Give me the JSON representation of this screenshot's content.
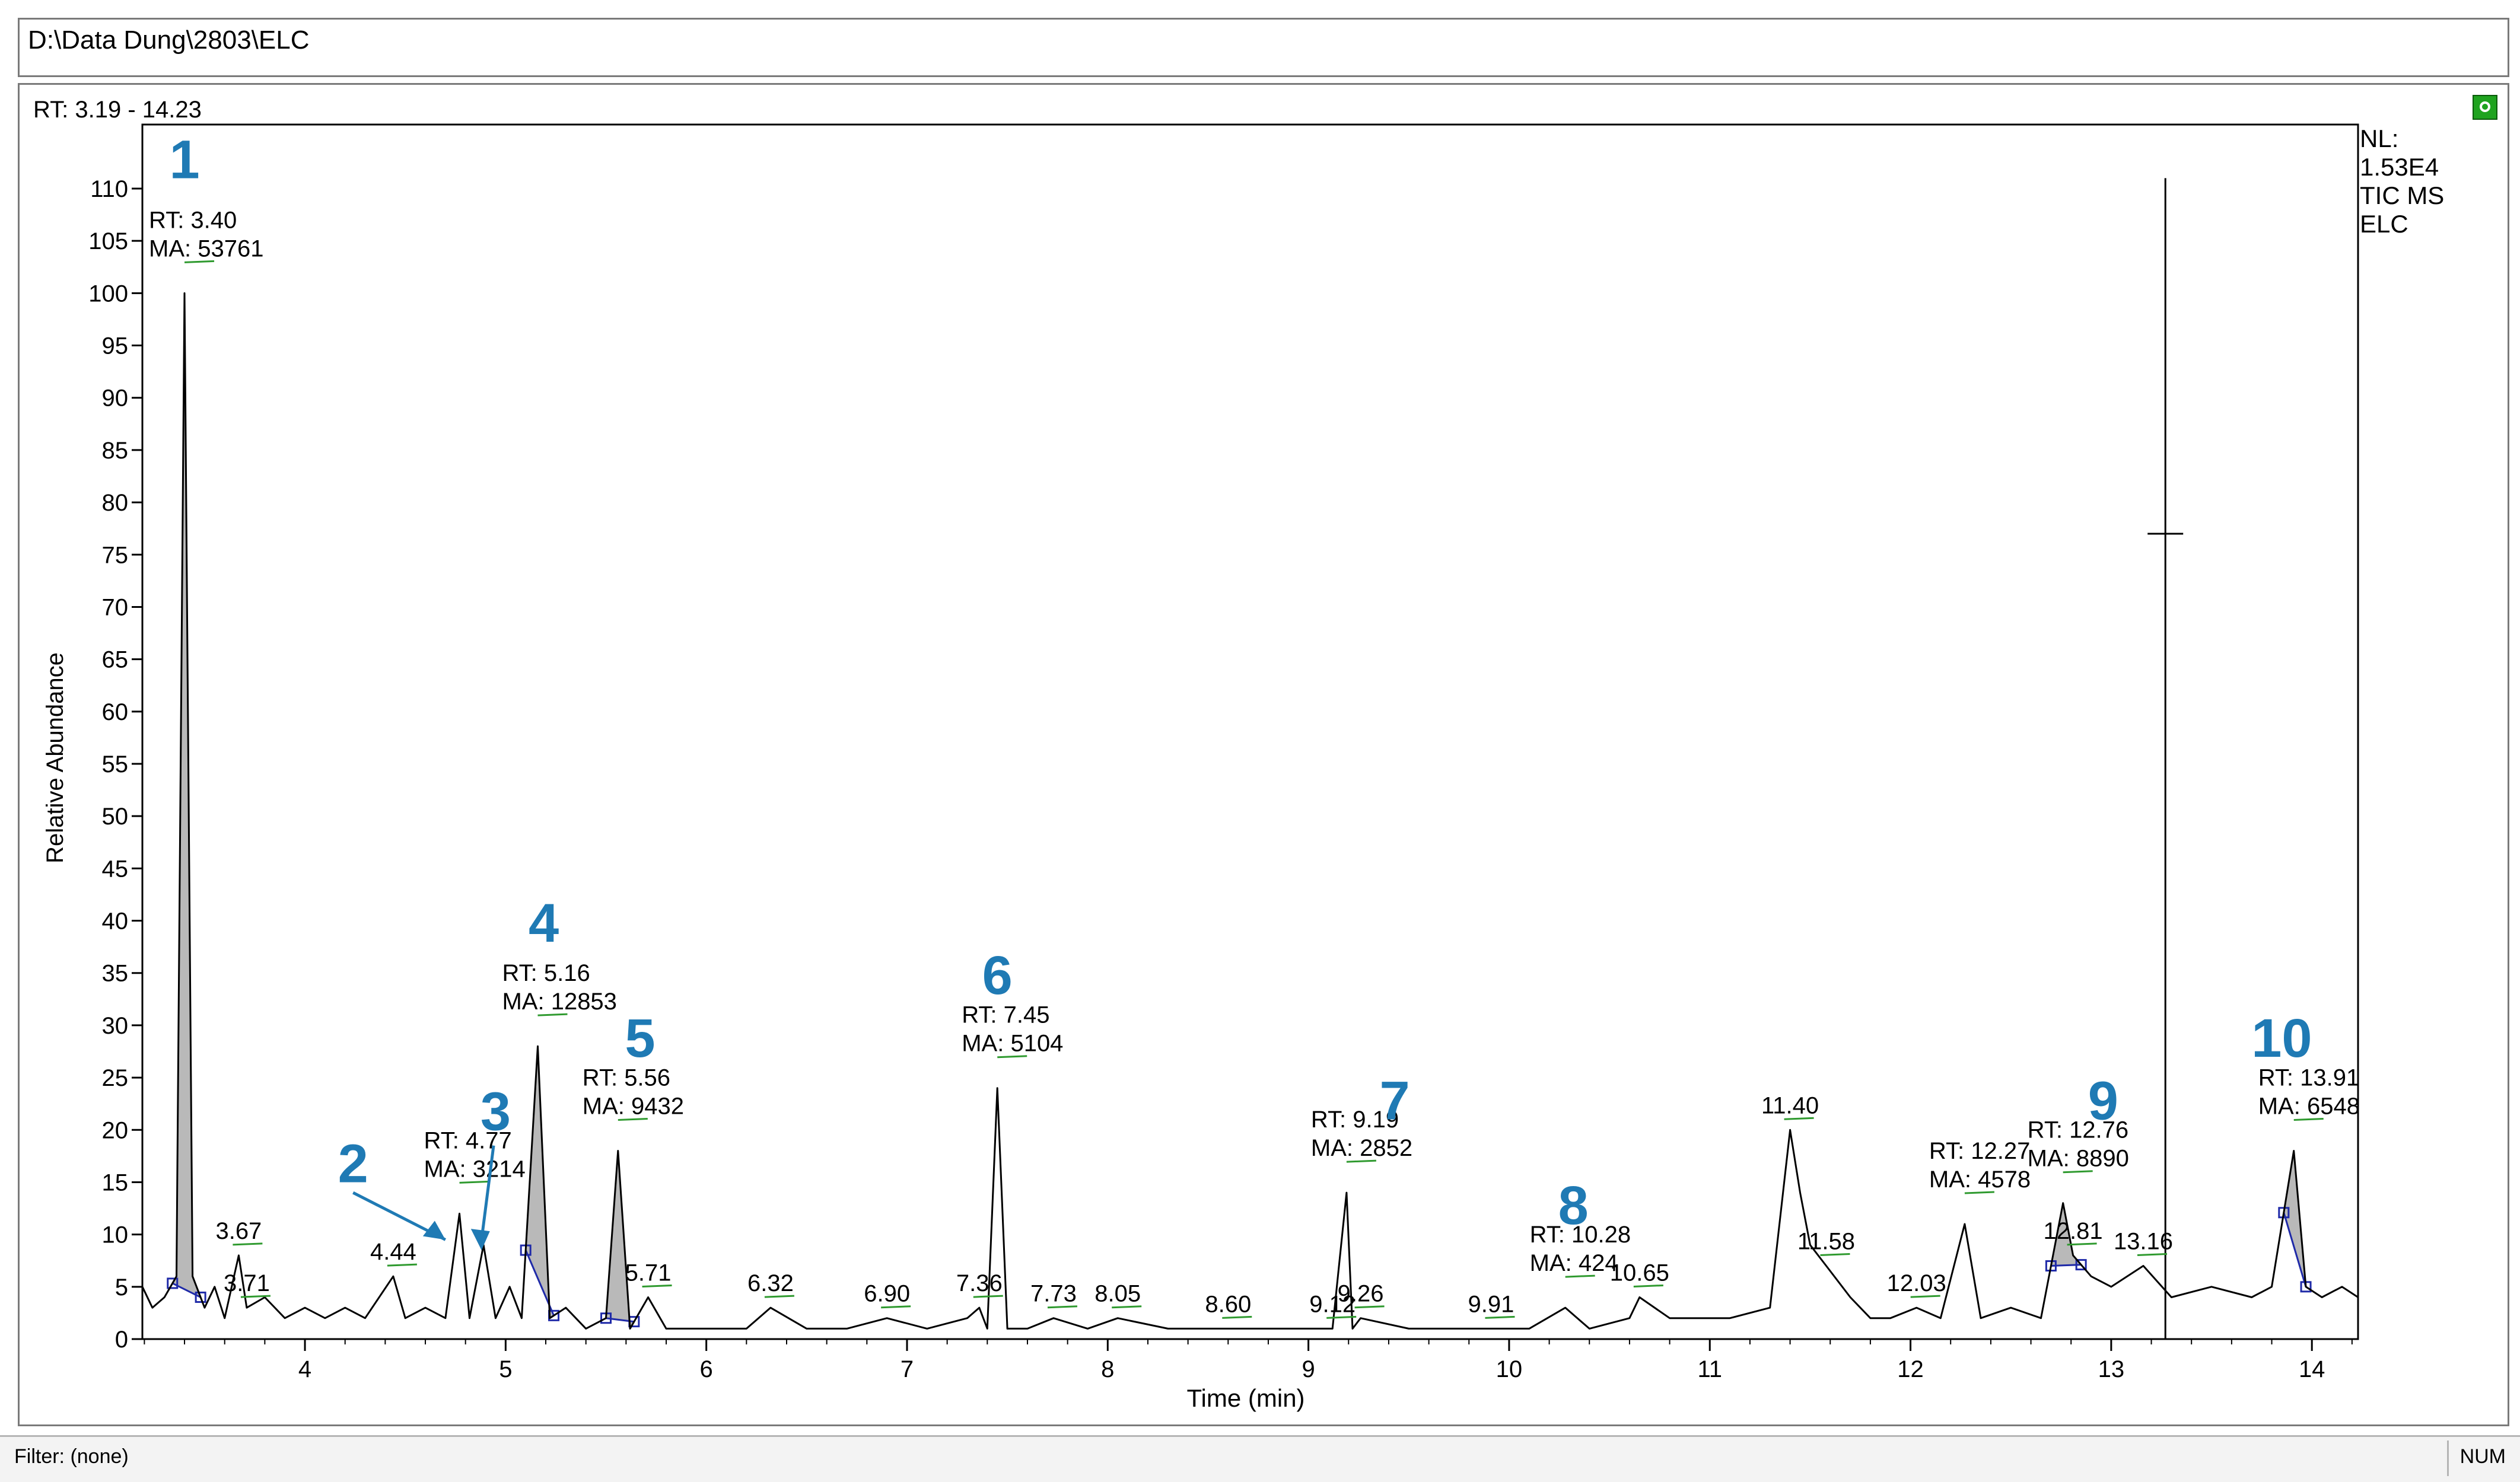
{
  "window": {
    "path": "D:\\Data Dung\\2803\\ELC",
    "range_label": "RT: 3.19 - 14.23",
    "pin_icon": "pin-icon"
  },
  "status": {
    "filter": "Filter: (none)",
    "num": "NUM"
  },
  "colors": {
    "peak_fill": "#b9b9b9",
    "callout_blue": "#1f7ab4",
    "baseline_blue": "#1f2aa8",
    "label_green": "#2f9a2f"
  },
  "chart_data": {
    "type": "line",
    "title": "",
    "xlabel": "Time (min)",
    "ylabel": "Relative Abundance",
    "xlim": [
      3.19,
      14.23
    ],
    "ylim": [
      0,
      110
    ],
    "x_ticks": [
      4,
      5,
      6,
      7,
      8,
      9,
      10,
      11,
      12,
      13,
      14
    ],
    "y_ticks": [
      0,
      5,
      10,
      15,
      20,
      25,
      30,
      35,
      40,
      45,
      50,
      55,
      60,
      65,
      70,
      75,
      80,
      85,
      90,
      95,
      100,
      105,
      110
    ],
    "grid": false,
    "info": [
      "NL:",
      "1.53E4",
      "TIC  MS",
      "ELC"
    ],
    "series": [
      {
        "points": [
          [
            3.19,
            5
          ],
          [
            3.24,
            3
          ],
          [
            3.3,
            4
          ],
          [
            3.36,
            6
          ],
          [
            3.4,
            100
          ],
          [
            3.44,
            6
          ],
          [
            3.5,
            3
          ],
          [
            3.55,
            5
          ],
          [
            3.6,
            2
          ],
          [
            3.67,
            8
          ],
          [
            3.71,
            3
          ],
          [
            3.8,
            4
          ],
          [
            3.9,
            2
          ],
          [
            4.0,
            3
          ],
          [
            4.1,
            2
          ],
          [
            4.2,
            3
          ],
          [
            4.3,
            2
          ],
          [
            4.44,
            6
          ],
          [
            4.5,
            2
          ],
          [
            4.6,
            3
          ],
          [
            4.7,
            2
          ],
          [
            4.77,
            12
          ],
          [
            4.82,
            2
          ],
          [
            4.89,
            9
          ],
          [
            4.95,
            2
          ],
          [
            5.02,
            5
          ],
          [
            5.08,
            2
          ],
          [
            5.16,
            28
          ],
          [
            5.22,
            2
          ],
          [
            5.3,
            3
          ],
          [
            5.4,
            1
          ],
          [
            5.5,
            2
          ],
          [
            5.56,
            18
          ],
          [
            5.62,
            1
          ],
          [
            5.71,
            4
          ],
          [
            5.8,
            1
          ],
          [
            6.0,
            1
          ],
          [
            6.2,
            1
          ],
          [
            6.32,
            3
          ],
          [
            6.5,
            1
          ],
          [
            6.7,
            1
          ],
          [
            6.9,
            2
          ],
          [
            7.1,
            1
          ],
          [
            7.3,
            2
          ],
          [
            7.36,
            3
          ],
          [
            7.4,
            1
          ],
          [
            7.45,
            24
          ],
          [
            7.5,
            1
          ],
          [
            7.6,
            1
          ],
          [
            7.73,
            2
          ],
          [
            7.9,
            1
          ],
          [
            8.05,
            2
          ],
          [
            8.3,
            1
          ],
          [
            8.6,
            1
          ],
          [
            8.8,
            1
          ],
          [
            9.0,
            1
          ],
          [
            9.12,
            1
          ],
          [
            9.19,
            14
          ],
          [
            9.22,
            1
          ],
          [
            9.26,
            2
          ],
          [
            9.5,
            1
          ],
          [
            9.7,
            1
          ],
          [
            9.91,
            1
          ],
          [
            10.1,
            1
          ],
          [
            10.28,
            3
          ],
          [
            10.4,
            1
          ],
          [
            10.6,
            2
          ],
          [
            10.65,
            4
          ],
          [
            10.8,
            2
          ],
          [
            10.95,
            2
          ],
          [
            11.1,
            2
          ],
          [
            11.3,
            3
          ],
          [
            11.4,
            20
          ],
          [
            11.45,
            14
          ],
          [
            11.5,
            9
          ],
          [
            11.58,
            7
          ],
          [
            11.7,
            4
          ],
          [
            11.8,
            2
          ],
          [
            11.9,
            2
          ],
          [
            12.03,
            3
          ],
          [
            12.15,
            2
          ],
          [
            12.27,
            11
          ],
          [
            12.35,
            2
          ],
          [
            12.5,
            3
          ],
          [
            12.65,
            2
          ],
          [
            12.76,
            13
          ],
          [
            12.81,
            8
          ],
          [
            12.9,
            6
          ],
          [
            13.0,
            5
          ],
          [
            13.16,
            7
          ],
          [
            13.3,
            4
          ],
          [
            13.5,
            5
          ],
          [
            13.7,
            4
          ],
          [
            13.8,
            5
          ],
          [
            13.91,
            18
          ],
          [
            13.97,
            5
          ],
          [
            14.05,
            4
          ],
          [
            14.15,
            5
          ],
          [
            14.23,
            4
          ]
        ]
      }
    ],
    "shaded_peaks": [
      {
        "from": 3.34,
        "to": 3.48
      },
      {
        "from": 5.1,
        "to": 5.24
      },
      {
        "from": 5.5,
        "to": 5.64
      },
      {
        "from": 12.7,
        "to": 12.85
      },
      {
        "from": 13.86,
        "to": 13.97
      }
    ],
    "rt_labels": [
      {
        "x": 3.4,
        "y": 100,
        "rt": "RT: 3.40",
        "ma": "MA: 53761"
      },
      {
        "x": 4.77,
        "y": 12,
        "rt": "RT: 4.77",
        "ma": "MA: 3214"
      },
      {
        "x": 5.16,
        "y": 28,
        "rt": "RT: 5.16",
        "ma": "MA: 12853"
      },
      {
        "x": 5.56,
        "y": 18,
        "rt": "RT: 5.56",
        "ma": "MA: 9432"
      },
      {
        "x": 7.45,
        "y": 24,
        "rt": "RT: 7.45",
        "ma": "MA: 5104"
      },
      {
        "x": 9.19,
        "y": 14,
        "rt": "RT: 9.19",
        "ma": "MA: 2852"
      },
      {
        "x": 10.28,
        "y": 3,
        "rt": "RT: 10.28",
        "ma": "MA: 424"
      },
      {
        "x": 12.27,
        "y": 11,
        "rt": "RT: 12.27",
        "ma": "MA: 4578"
      },
      {
        "x": 12.76,
        "y": 13,
        "rt": "RT: 12.76",
        "ma": "MA: 8890"
      },
      {
        "x": 13.91,
        "y": 18,
        "rt": "RT: 13.91",
        "ma": "MA: 6548"
      }
    ],
    "peak_labels": [
      {
        "x": 3.67,
        "y": 8,
        "text": "3.67"
      },
      {
        "x": 3.71,
        "y": 3,
        "text": "3.71"
      },
      {
        "x": 4.44,
        "y": 6,
        "text": "4.44"
      },
      {
        "x": 5.71,
        "y": 4,
        "text": "5.71"
      },
      {
        "x": 6.32,
        "y": 3,
        "text": "6.32"
      },
      {
        "x": 6.9,
        "y": 2,
        "text": "6.90"
      },
      {
        "x": 7.36,
        "y": 3,
        "text": "7.36"
      },
      {
        "x": 7.73,
        "y": 2,
        "text": "7.73"
      },
      {
        "x": 8.05,
        "y": 2,
        "text": "8.05"
      },
      {
        "x": 8.6,
        "y": 1,
        "text": "8.60"
      },
      {
        "x": 9.12,
        "y": 1,
        "text": "9.12"
      },
      {
        "x": 9.26,
        "y": 2,
        "text": "9.26"
      },
      {
        "x": 9.91,
        "y": 1,
        "text": "9.91"
      },
      {
        "x": 10.65,
        "y": 4,
        "text": "10.65"
      },
      {
        "x": 11.4,
        "y": 20,
        "text": "11.40"
      },
      {
        "x": 11.58,
        "y": 7,
        "text": "11.58"
      },
      {
        "x": 12.03,
        "y": 3,
        "text": "12.03"
      },
      {
        "x": 12.81,
        "y": 8,
        "text": "12.81"
      },
      {
        "x": 13.16,
        "y": 7,
        "text": "13.16"
      }
    ],
    "callouts": [
      {
        "x": 3.4,
        "y": 111,
        "text": "1"
      },
      {
        "x": 4.24,
        "y": 15,
        "text": "2"
      },
      {
        "x": 4.95,
        "y": 20,
        "text": "3"
      },
      {
        "x": 5.19,
        "y": 38,
        "text": "4"
      },
      {
        "x": 5.67,
        "y": 27,
        "text": "5"
      },
      {
        "x": 7.45,
        "y": 33,
        "text": "6"
      },
      {
        "x": 9.43,
        "y": 21,
        "text": "7"
      },
      {
        "x": 10.32,
        "y": 11,
        "text": "8"
      },
      {
        "x": 12.96,
        "y": 21,
        "text": "9"
      },
      {
        "x": 13.85,
        "y": 27,
        "text": "10"
      }
    ],
    "cursor": {
      "x": 13.27,
      "y_top": 111,
      "y_bottom": 0,
      "cross_y": 77
    }
  }
}
